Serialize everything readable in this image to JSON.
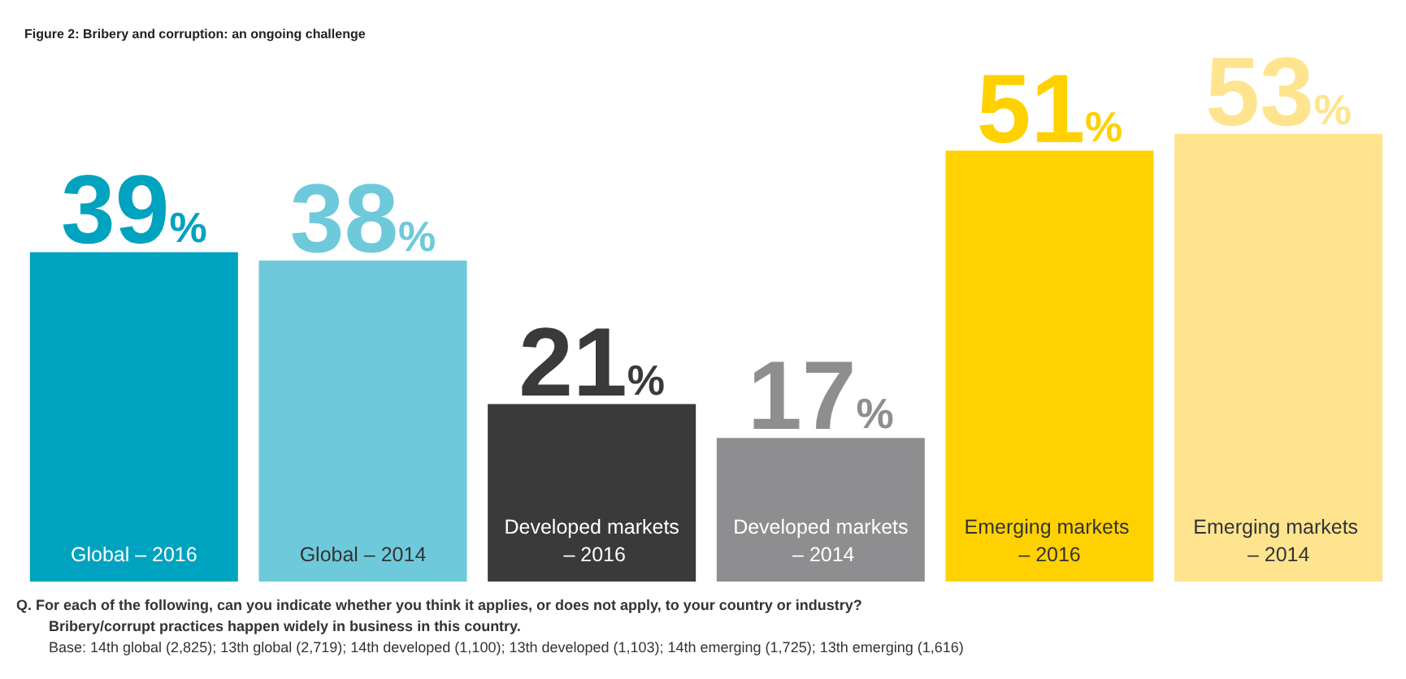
{
  "chart_data": {
    "type": "bar",
    "title": "Figure 2: Bribery and corruption: an ongoing challenge",
    "categories": [
      "Global – 2016",
      "Global – 2014",
      "Developed markets – 2016",
      "Developed markets – 2014",
      "Emerging markets – 2016",
      "Emerging markets – 2014"
    ],
    "values": [
      39,
      38,
      21,
      17,
      51,
      53
    ],
    "colors": [
      "#00a3bf",
      "#6ecadb",
      "#3a3a3a",
      "#8e8e90",
      "#ffd100",
      "#ffe48f"
    ],
    "value_labels": [
      "39%",
      "38%",
      "21%",
      "17%",
      "51%",
      "53%"
    ],
    "grid": false,
    "annotations": [
      "Q. For each of the following, can you indicate whether you think it applies, or does not apply, to your country or industry?",
      "Bribery/corrupt practices happen widely in business in this country.",
      "Base: 14th global (2,825); 13th global (2,719); 14th developed (1,100); 13th developed (1,103); 14th emerging (1,725); 13th emerging (1,616)"
    ]
  }
}
